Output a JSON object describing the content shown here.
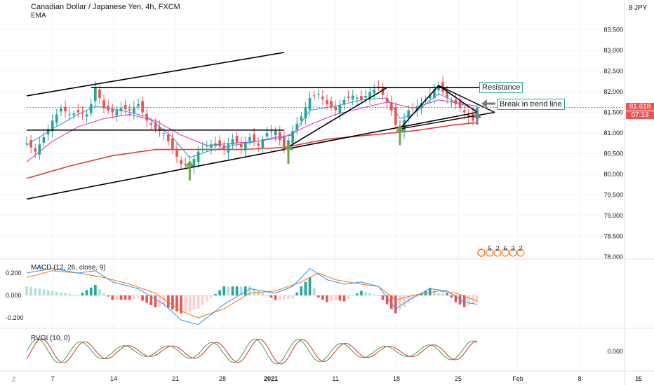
{
  "header": {
    "title": "Canadian Dollar / Japanese Yen, 4h, FXCM",
    "indicator": "EMA",
    "currency": "JPY",
    "currency_icon": "eight-icon"
  },
  "annotations": {
    "resistance": "Resistance",
    "break": "Break in trend line",
    "event_counts": [
      "5",
      "2",
      "6",
      "3",
      "2"
    ]
  },
  "price_tag": {
    "last": "81.618",
    "countdown": "07:13"
  },
  "macd": {
    "label": "MACD (12, 26, close, 9)"
  },
  "rvgi": {
    "label": "RVGI (10, 0)"
  },
  "corner": {
    "left": "Z",
    "right": "A"
  },
  "colors": {
    "up": "#26a69a",
    "down": "#ef5350",
    "ema_fast": "#2196f3",
    "ema_mid": "#e91ec8",
    "ema_slow": "#e53935",
    "macd_line": "#2196f3",
    "signal_line": "#ff6d00",
    "rvgi_green": "#43a047",
    "rvgi_red": "#d32f2f",
    "arrow_green": "#6aa84f",
    "arrow_gray": "#787b86"
  },
  "chart_data": [
    {
      "type": "candlestick",
      "title": "Canadian Dollar / Japanese Yen, 4h, FXCM",
      "x_ticks": [
        "7",
        "14",
        "21",
        "28",
        "2021",
        "11",
        "18",
        "25",
        "Feb",
        "8",
        "15"
      ],
      "y_ticks": [
        "78.000",
        "78.500",
        "79.000",
        "79.500",
        "80.000",
        "80.500",
        "81.000",
        "81.500",
        "82.000",
        "82.500",
        "83.000",
        "83.500"
      ],
      "ylim": [
        77.9,
        83.9
      ],
      "close_path": [
        [
          0,
          80.75
        ],
        [
          2,
          80.55
        ],
        [
          4,
          80.9
        ],
        [
          6,
          81.3
        ],
        [
          8,
          81.6
        ],
        [
          10,
          81.45
        ],
        [
          12,
          81.5
        ],
        [
          14,
          81.45
        ],
        [
          15,
          81.7
        ],
        [
          16,
          82.1
        ],
        [
          18,
          81.6
        ],
        [
          20,
          81.5
        ],
        [
          22,
          81.6
        ],
        [
          24,
          81.55
        ],
        [
          26,
          81.7
        ],
        [
          28,
          81.3
        ],
        [
          30,
          81.1
        ],
        [
          32,
          81.0
        ],
        [
          34,
          80.6
        ],
        [
          36,
          80.25
        ],
        [
          38,
          80.2
        ],
        [
          40,
          80.55
        ],
        [
          42,
          80.7
        ],
        [
          44,
          80.75
        ],
        [
          46,
          80.6
        ],
        [
          48,
          80.85
        ],
        [
          50,
          80.65
        ],
        [
          52,
          80.9
        ],
        [
          54,
          80.7
        ],
        [
          56,
          81.0
        ],
        [
          58,
          81.05
        ],
        [
          60,
          80.6
        ],
        [
          62,
          81.05
        ],
        [
          64,
          81.4
        ],
        [
          66,
          81.85
        ],
        [
          68,
          81.95
        ],
        [
          70,
          81.7
        ],
        [
          72,
          81.55
        ],
        [
          74,
          81.8
        ],
        [
          76,
          81.9
        ],
        [
          78,
          81.8
        ],
        [
          80,
          82.0
        ],
        [
          82,
          82.1
        ],
        [
          84,
          81.75
        ],
        [
          85,
          81.55
        ],
        [
          86,
          81.2
        ],
        [
          87,
          81.1
        ],
        [
          89,
          81.55
        ],
        [
          91,
          81.65
        ],
        [
          93,
          81.8
        ],
        [
          95,
          82.05
        ],
        [
          96,
          82.15
        ],
        [
          98,
          81.85
        ],
        [
          100,
          81.7
        ],
        [
          102,
          81.5
        ],
        [
          104,
          81.3
        ],
        [
          105,
          81.62
        ]
      ],
      "ema_fast": [
        [
          0,
          80.7
        ],
        [
          6,
          81.1
        ],
        [
          12,
          81.45
        ],
        [
          16,
          81.65
        ],
        [
          22,
          81.55
        ],
        [
          28,
          81.4
        ],
        [
          34,
          80.9
        ],
        [
          38,
          80.4
        ],
        [
          42,
          80.55
        ],
        [
          48,
          80.7
        ],
        [
          54,
          80.8
        ],
        [
          58,
          80.9
        ],
        [
          62,
          80.95
        ],
        [
          66,
          81.55
        ],
        [
          72,
          81.65
        ],
        [
          78,
          81.8
        ],
        [
          84,
          81.85
        ],
        [
          87,
          81.35
        ],
        [
          90,
          81.45
        ],
        [
          96,
          81.95
        ],
        [
          100,
          81.75
        ],
        [
          105,
          81.55
        ]
      ],
      "ema_mid": [
        [
          0,
          80.3
        ],
        [
          6,
          80.8
        ],
        [
          12,
          81.15
        ],
        [
          18,
          81.35
        ],
        [
          24,
          81.45
        ],
        [
          30,
          81.3
        ],
        [
          36,
          80.95
        ],
        [
          42,
          80.7
        ],
        [
          48,
          80.75
        ],
        [
          54,
          80.8
        ],
        [
          60,
          80.9
        ],
        [
          66,
          81.2
        ],
        [
          72,
          81.45
        ],
        [
          78,
          81.6
        ],
        [
          84,
          81.75
        ],
        [
          90,
          81.6
        ],
        [
          96,
          81.8
        ],
        [
          102,
          81.7
        ],
        [
          105,
          81.65
        ]
      ],
      "ema_slow": [
        [
          0,
          79.9
        ],
        [
          10,
          80.2
        ],
        [
          20,
          80.45
        ],
        [
          30,
          80.6
        ],
        [
          40,
          80.6
        ],
        [
          50,
          80.6
        ],
        [
          60,
          80.65
        ],
        [
          70,
          80.85
        ],
        [
          80,
          80.95
        ],
        [
          90,
          81.05
        ],
        [
          100,
          81.2
        ],
        [
          105,
          81.25
        ]
      ],
      "trendlines": [
        {
          "name": "upper-channel",
          "from": [
            0,
            81.9
          ],
          "to": [
            60,
            82.95
          ]
        },
        {
          "name": "lower-channel",
          "from": [
            0,
            79.4
          ],
          "to": [
            105,
            81.5
          ]
        },
        {
          "name": "resistance-line",
          "from": [
            15,
            82.1
          ],
          "to": [
            100,
            82.1
          ]
        },
        {
          "name": "support-line",
          "from": [
            0,
            81.07
          ],
          "to": [
            60,
            81.07
          ]
        },
        {
          "name": "inner-trend",
          "from": [
            60,
            80.6
          ],
          "to": [
            84,
            82.1
          ]
        },
        {
          "name": "steep-trend",
          "from": [
            87,
            81.1
          ],
          "to": [
            96,
            82.15
          ]
        },
        {
          "name": "descending-wedge",
          "from": [
            96,
            82.15
          ],
          "to": [
            105,
            81.5
          ]
        }
      ],
      "arrows": [
        {
          "name": "arrow-up-1",
          "at": [
            38,
            79.85
          ]
        },
        {
          "name": "arrow-up-2",
          "at": [
            61,
            80.25
          ]
        },
        {
          "name": "arrow-up-3",
          "at": [
            87,
            80.7
          ]
        },
        {
          "name": "arrow-up-gray",
          "at": [
            105,
            81.2
          ]
        }
      ]
    },
    {
      "type": "histogram",
      "title": "MACD (12, 26, close, 9)",
      "y_ticks": [
        "0.200",
        "0.000",
        "-0.200"
      ],
      "ylim": [
        -0.3,
        0.3
      ],
      "macd_line": [
        [
          0,
          0.2
        ],
        [
          6,
          0.24
        ],
        [
          12,
          0.2
        ],
        [
          16,
          0.22
        ],
        [
          20,
          0.12
        ],
        [
          26,
          0.06
        ],
        [
          32,
          -0.08
        ],
        [
          36,
          -0.22
        ],
        [
          40,
          -0.26
        ],
        [
          46,
          -0.08
        ],
        [
          52,
          0.06
        ],
        [
          58,
          0.02
        ],
        [
          62,
          0.08
        ],
        [
          66,
          0.24
        ],
        [
          70,
          0.14
        ],
        [
          74,
          0.1
        ],
        [
          78,
          0.12
        ],
        [
          82,
          0.08
        ],
        [
          86,
          -0.12
        ],
        [
          90,
          -0.02
        ],
        [
          94,
          0.06
        ],
        [
          98,
          0.04
        ],
        [
          102,
          -0.06
        ],
        [
          105,
          -0.08
        ]
      ],
      "signal_line": [
        [
          0,
          0.16
        ],
        [
          6,
          0.22
        ],
        [
          12,
          0.2
        ],
        [
          18,
          0.16
        ],
        [
          24,
          0.1
        ],
        [
          30,
          0.02
        ],
        [
          36,
          -0.14
        ],
        [
          40,
          -0.2
        ],
        [
          46,
          -0.12
        ],
        [
          52,
          0.02
        ],
        [
          58,
          0.04
        ],
        [
          64,
          0.12
        ],
        [
          68,
          0.2
        ],
        [
          72,
          0.14
        ],
        [
          78,
          0.1
        ],
        [
          82,
          0.08
        ],
        [
          86,
          -0.04
        ],
        [
          90,
          0.0
        ],
        [
          96,
          0.04
        ],
        [
          100,
          0.02
        ],
        [
          105,
          -0.05
        ]
      ]
    },
    {
      "type": "line",
      "title": "RVGI (10, 0)",
      "y_ticks": [
        "0.000"
      ],
      "ylim": [
        -0.3,
        0.3
      ]
    }
  ]
}
